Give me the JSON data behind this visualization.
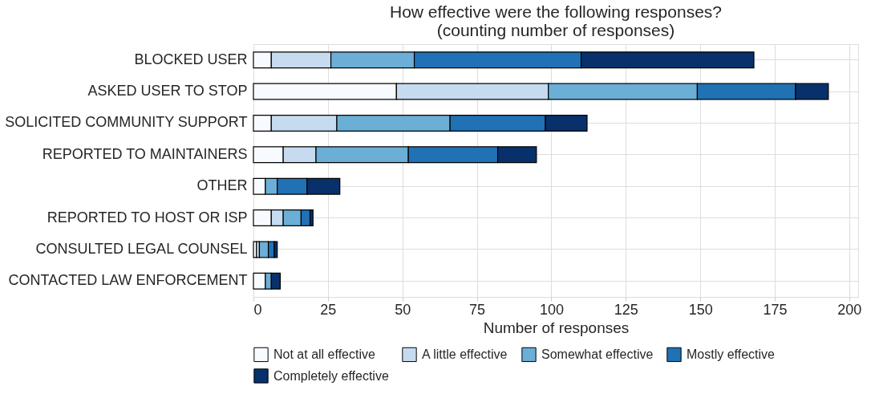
{
  "chart_data": {
    "type": "bar",
    "orientation": "horizontal",
    "stacked": true,
    "title": "How effective were the following responses?",
    "subtitle": "(counting number of responses)",
    "xlabel": "Number of responses",
    "categories": [
      "BLOCKED USER",
      "ASKED USER TO STOP",
      "SOLICITED COMMUNITY SUPPORT",
      "REPORTED TO MAINTAINERS",
      "OTHER",
      "REPORTED TO HOST OR ISP",
      "CONSULTED LEGAL COUNSEL",
      "CONTACTED LAW ENFORCEMENT"
    ],
    "series": [
      {
        "name": "Not at all effective",
        "color": "#f7fbff",
        "values": [
          6,
          48,
          6,
          10,
          4,
          6,
          1,
          4
        ]
      },
      {
        "name": "A little effective",
        "color": "#c6dbef",
        "values": [
          20,
          51,
          22,
          11,
          0,
          4,
          1,
          0
        ]
      },
      {
        "name": "Somewhat effective",
        "color": "#6baed6",
        "values": [
          28,
          50,
          38,
          31,
          4,
          6,
          3,
          2
        ]
      },
      {
        "name": "Mostly effective",
        "color": "#2171b5",
        "values": [
          56,
          33,
          32,
          30,
          10,
          3,
          2,
          0
        ]
      },
      {
        "name": "Completely effective",
        "color": "#08306b",
        "values": [
          58,
          11,
          14,
          13,
          11,
          1,
          1,
          3
        ]
      }
    ],
    "xlim": [
      0,
      203
    ],
    "xticks": [
      0,
      25,
      50,
      75,
      100,
      125,
      150,
      175,
      200
    ],
    "grid": true,
    "legend": "bottom"
  }
}
